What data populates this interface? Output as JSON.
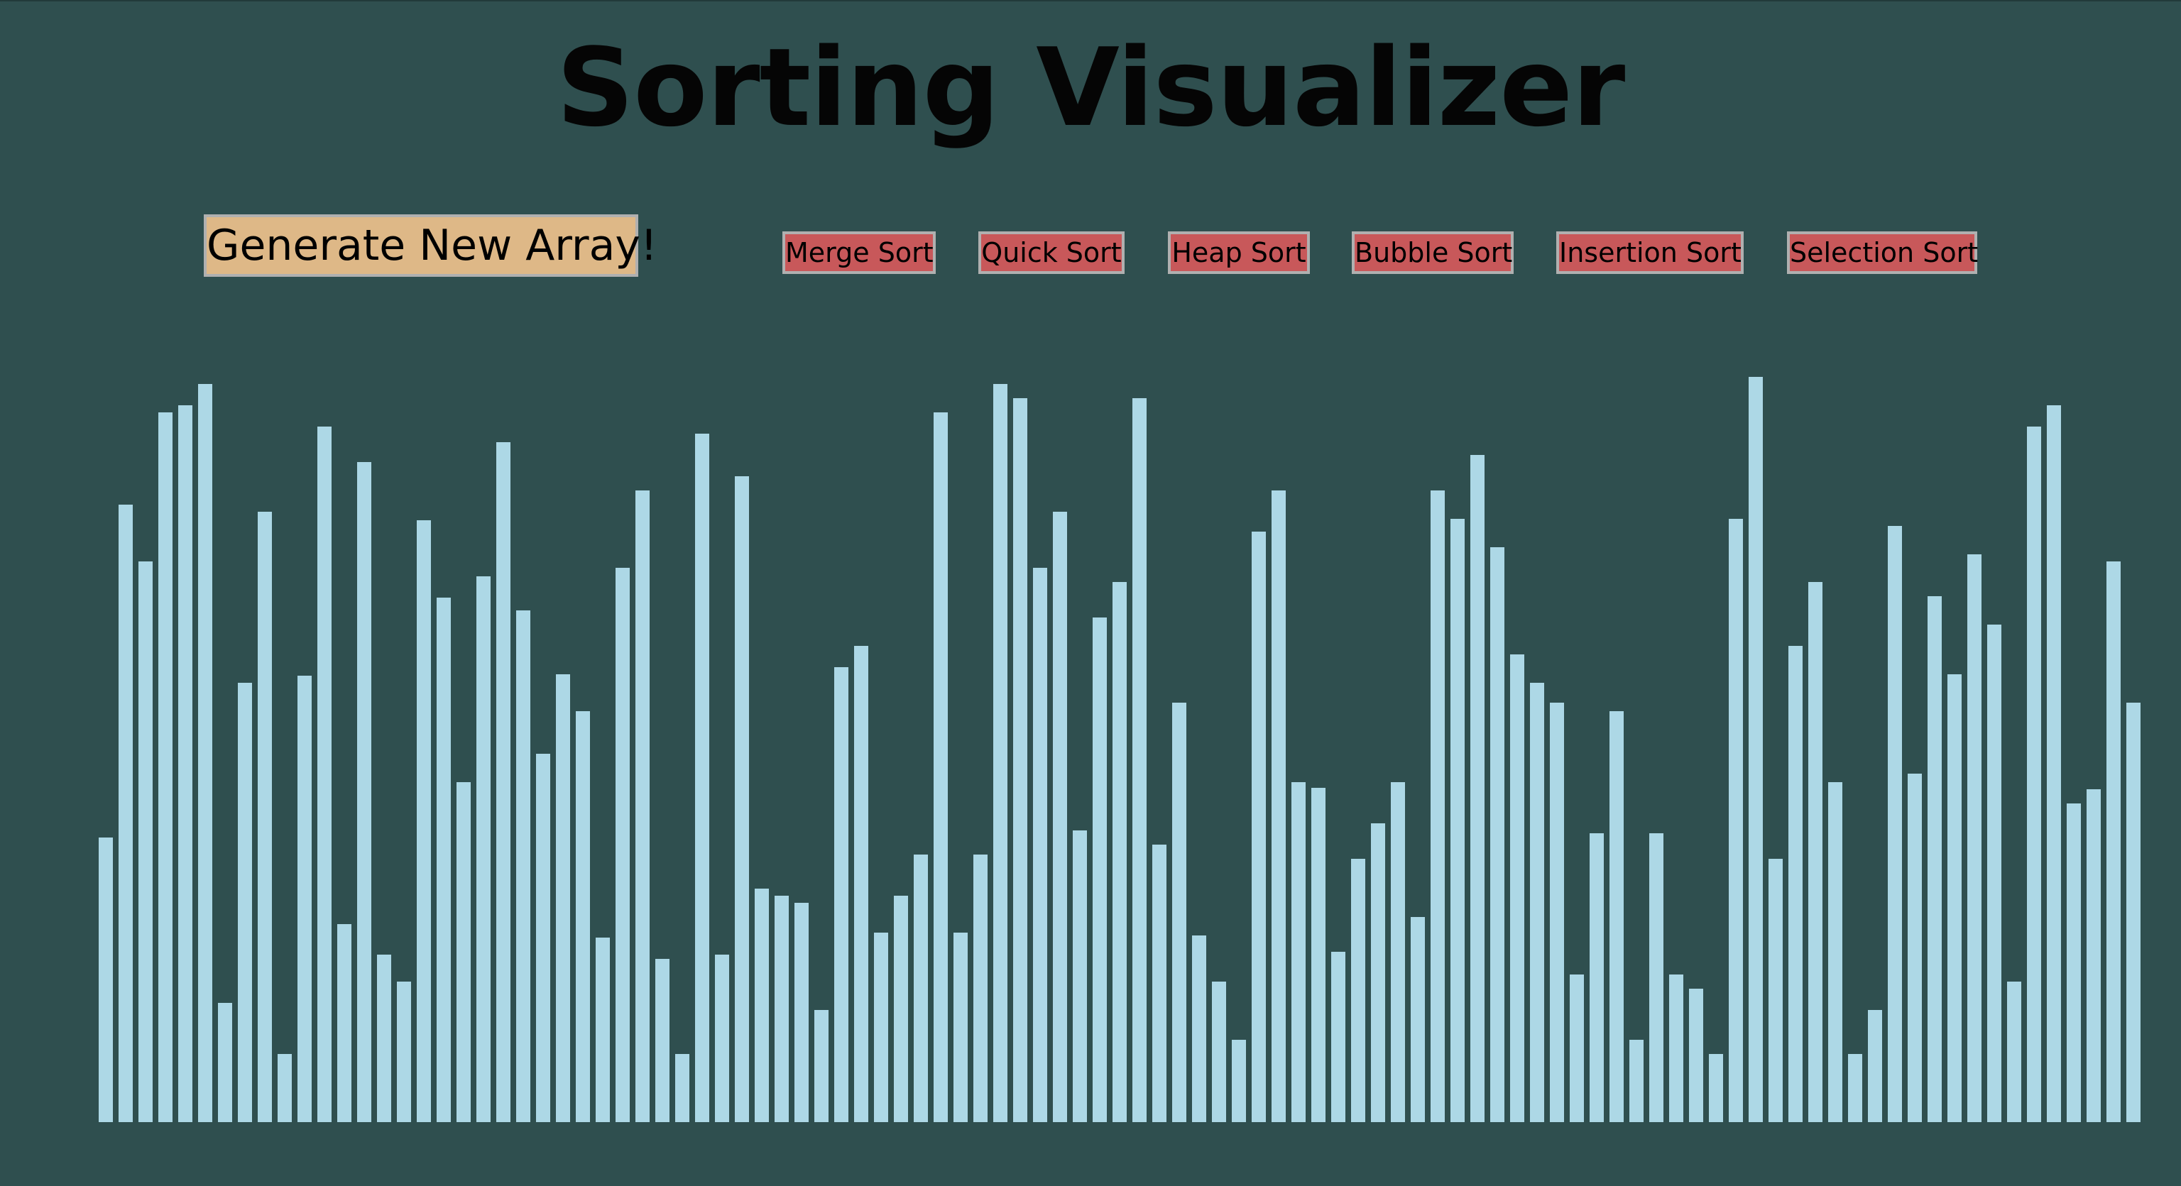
{
  "title": "Sorting Visualizer",
  "controls": {
    "generate_label": "Generate New Array!",
    "algorithms": [
      "Merge Sort",
      "Quick Sort",
      "Heap Sort",
      "Bubble Sort",
      "Insertion Sort",
      "Selection Sort"
    ]
  },
  "array": {
    "bar_color": "#add8e6",
    "background_color": "#2f4f4f",
    "values": [
      201,
      436,
      396,
      501,
      506,
      521,
      84,
      310,
      431,
      48,
      315,
      491,
      140,
      466,
      118,
      99,
      425,
      370,
      240,
      385,
      480,
      361,
      260,
      316,
      290,
      130,
      391,
      446,
      115,
      48,
      486,
      118,
      456,
      165,
      160,
      155,
      79,
      321,
      336,
      134,
      160,
      189,
      501,
      134,
      189,
      521,
      511,
      391,
      431,
      206,
      356,
      381,
      511,
      196,
      296,
      132,
      99,
      58,
      417,
      446,
      240,
      236,
      120,
      186,
      211,
      240,
      145,
      446,
      426,
      471,
      406,
      330,
      310,
      296,
      104,
      204,
      290,
      58,
      204,
      104,
      94,
      48,
      426,
      526,
      186,
      336,
      381,
      240,
      48,
      79,
      421,
      246,
      371,
      316,
      401,
      351,
      99,
      491,
      506,
      225,
      235,
      396,
      296
    ],
    "max_value": 526
  }
}
